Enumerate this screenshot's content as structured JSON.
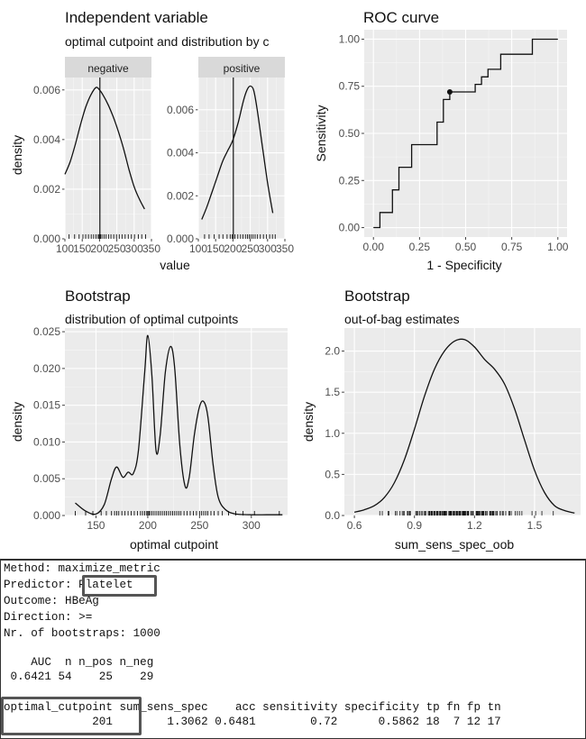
{
  "plots": {
    "independent": {
      "title": "Independent variable",
      "subtitle": "optimal cutpoint and distribution by c",
      "ylabel": "density",
      "xlabel": "value",
      "panels": [
        {
          "label": "negative"
        },
        {
          "label": "positive"
        }
      ]
    },
    "roc": {
      "title": "ROC curve",
      "xlabel": "1 - Specificity",
      "ylabel": "Sensitivity"
    },
    "boot_cut": {
      "title": "Bootstrap",
      "subtitle": "distribution of optimal cutpoints",
      "xlabel": "optimal cutpoint",
      "ylabel": "density"
    },
    "boot_oob": {
      "title": "Bootstrap",
      "subtitle": "out-of-bag estimates",
      "xlabel": "sum_sens_spec_oob",
      "ylabel": "density"
    }
  },
  "chart_data": [
    {
      "type": "line",
      "panel": "negative",
      "title": "Independent variable",
      "xlabel": "value",
      "ylabel": "density",
      "xlim": [
        100,
        350
      ],
      "ylim": [
        0,
        0.0065
      ],
      "xticks": [
        100,
        150,
        200,
        250,
        300,
        350
      ],
      "xtick_labels": [
        "100",
        "150",
        "200",
        "250",
        "300",
        "350"
      ],
      "yticks": [
        0,
        0.002,
        0.004,
        0.006
      ],
      "ytick_labels": [
        "0.000",
        "0.002",
        "0.004",
        "0.006"
      ],
      "cutpoint": 201,
      "x": [
        100,
        115,
        130,
        145,
        160,
        175,
        190,
        200,
        210,
        225,
        240,
        255,
        270,
        285,
        300,
        315,
        330
      ],
      "y": [
        0.0026,
        0.0031,
        0.0038,
        0.0046,
        0.0053,
        0.0058,
        0.0061,
        0.006,
        0.0058,
        0.0054,
        0.0049,
        0.0043,
        0.0036,
        0.0028,
        0.0021,
        0.0016,
        0.0012
      ],
      "rug": [
        112,
        128,
        141,
        152,
        160,
        168,
        176,
        183,
        190,
        196,
        199,
        203,
        207,
        213,
        219,
        226,
        233,
        241,
        249,
        257,
        265,
        274,
        283,
        292,
        301,
        312,
        322,
        333
      ]
    },
    {
      "type": "line",
      "panel": "positive",
      "xlim": [
        100,
        350
      ],
      "ylim": [
        0,
        0.0075
      ],
      "xticks": [
        100,
        150,
        200,
        250,
        300,
        350
      ],
      "xtick_labels": [
        "100",
        "150",
        "200",
        "250",
        "300",
        "350"
      ],
      "yticks": [
        0,
        0.002,
        0.004,
        0.006
      ],
      "ytick_labels": [
        "0.000",
        "0.002",
        "0.004",
        "0.006"
      ],
      "cutpoint": 201,
      "x": [
        110,
        125,
        140,
        155,
        170,
        185,
        200,
        215,
        230,
        240,
        250,
        260,
        270,
        285,
        300,
        315
      ],
      "y": [
        0.0009,
        0.0015,
        0.0022,
        0.0029,
        0.0036,
        0.0041,
        0.0046,
        0.0054,
        0.0064,
        0.0069,
        0.0071,
        0.0069,
        0.006,
        0.0043,
        0.0026,
        0.0012
      ],
      "rug": [
        118,
        131,
        146,
        160,
        171,
        183,
        192,
        198,
        206,
        214,
        222,
        229,
        236,
        242,
        247,
        252,
        258,
        264,
        271,
        279,
        288,
        297,
        306,
        314,
        322
      ]
    },
    {
      "type": "step",
      "title": "ROC curve",
      "xlabel": "1 - Specificity",
      "ylabel": "Sensitivity",
      "xlim": [
        0,
        1
      ],
      "ylim": [
        0,
        1
      ],
      "xticks": [
        0,
        0.25,
        0.5,
        0.75,
        1
      ],
      "xtick_labels": [
        "0.00",
        "0.25",
        "0.50",
        "0.75",
        "1.00"
      ],
      "yticks": [
        0,
        0.25,
        0.5,
        0.75,
        1
      ],
      "ytick_labels": [
        "0.00",
        "0.25",
        "0.50",
        "0.75",
        "1.00"
      ],
      "points": [
        [
          0,
          0
        ],
        [
          0.035,
          0
        ],
        [
          0.035,
          0.08
        ],
        [
          0.103,
          0.08
        ],
        [
          0.103,
          0.2
        ],
        [
          0.138,
          0.2
        ],
        [
          0.138,
          0.32
        ],
        [
          0.207,
          0.32
        ],
        [
          0.207,
          0.44
        ],
        [
          0.345,
          0.44
        ],
        [
          0.345,
          0.56
        ],
        [
          0.379,
          0.56
        ],
        [
          0.379,
          0.68
        ],
        [
          0.414,
          0.68
        ],
        [
          0.414,
          0.72
        ],
        [
          0.552,
          0.72
        ],
        [
          0.552,
          0.76
        ],
        [
          0.586,
          0.76
        ],
        [
          0.586,
          0.8
        ],
        [
          0.621,
          0.8
        ],
        [
          0.621,
          0.84
        ],
        [
          0.69,
          0.84
        ],
        [
          0.69,
          0.92
        ],
        [
          0.862,
          0.92
        ],
        [
          0.862,
          1.0
        ],
        [
          1.0,
          1.0
        ]
      ],
      "optimal": {
        "x": 0.414,
        "y": 0.72
      }
    },
    {
      "type": "line",
      "title": "Bootstrap",
      "subtitle": "distribution of optimal cutpoints",
      "xlabel": "optimal cutpoint",
      "ylabel": "density",
      "xlim": [
        120,
        335
      ],
      "ylim": [
        0,
        0.0255
      ],
      "xticks": [
        150,
        200,
        250,
        300
      ],
      "xtick_labels": [
        "150",
        "200",
        "250",
        "300"
      ],
      "yticks": [
        0,
        0.005,
        0.01,
        0.015,
        0.02,
        0.025
      ],
      "ytick_labels": [
        "0.000",
        "0.005",
        "0.010",
        "0.015",
        "0.020",
        "0.025"
      ],
      "x": [
        130,
        140,
        150,
        158,
        165,
        170,
        176,
        181,
        186,
        191,
        197,
        200,
        204,
        208,
        212,
        217,
        222,
        226,
        231,
        236,
        240,
        245,
        250,
        254,
        258,
        263,
        268,
        275,
        285,
        300,
        315,
        330
      ],
      "y": [
        0.0017,
        0.0006,
        0.0002,
        0.0015,
        0.005,
        0.0066,
        0.0052,
        0.0059,
        0.0057,
        0.0089,
        0.0195,
        0.0245,
        0.019,
        0.0088,
        0.011,
        0.0195,
        0.023,
        0.02,
        0.0095,
        0.004,
        0.0052,
        0.011,
        0.0148,
        0.0155,
        0.0135,
        0.007,
        0.0025,
        0.0008,
        0.0002,
        0.0001,
        0.0001,
        0.0001
      ],
      "rug": [
        130,
        140,
        147,
        155,
        160,
        165,
        168,
        170,
        172,
        175,
        178,
        181,
        184,
        187,
        190,
        193,
        195,
        197,
        199,
        200,
        201,
        202,
        204,
        206,
        208,
        210,
        212,
        214,
        216,
        218,
        220,
        222,
        224,
        226,
        228,
        230,
        232,
        235,
        238,
        241,
        244,
        247,
        250,
        252,
        254,
        256,
        258,
        261,
        264,
        268,
        272,
        278,
        285,
        292,
        303,
        327
      ]
    },
    {
      "type": "line",
      "title": "Bootstrap",
      "subtitle": "out-of-bag estimates",
      "xlabel": "sum_sens_spec_oob",
      "ylabel": "density",
      "xlim": [
        0.55,
        1.73
      ],
      "ylim": [
        0,
        2.28
      ],
      "xticks": [
        0.6,
        0.9,
        1.2,
        1.5
      ],
      "xtick_labels": [
        "0.6",
        "0.9",
        "1.2",
        "1.5"
      ],
      "yticks": [
        0,
        0.5,
        1.0,
        1.5,
        2.0
      ],
      "ytick_labels": [
        "0.0",
        "0.5",
        "1.0",
        "1.5",
        "2.0"
      ],
      "x": [
        0.6,
        0.65,
        0.7,
        0.75,
        0.8,
        0.85,
        0.9,
        0.95,
        1.0,
        1.05,
        1.1,
        1.15,
        1.2,
        1.25,
        1.3,
        1.35,
        1.4,
        1.45,
        1.5,
        1.55,
        1.6,
        1.65,
        1.7
      ],
      "y": [
        0.04,
        0.07,
        0.12,
        0.22,
        0.4,
        0.68,
        1.05,
        1.45,
        1.78,
        2.0,
        2.12,
        2.14,
        2.05,
        1.9,
        1.78,
        1.6,
        1.3,
        0.92,
        0.55,
        0.28,
        0.12,
        0.06,
        0.03
      ],
      "rug_range": [
        0.62,
        1.68
      ]
    }
  ],
  "console": {
    "method": "Method: maximize_metric",
    "predictor_prefix": "Predictor: ",
    "predictor_value": "Platelet",
    "outcome": "Outcome: HBeAg",
    "direction": "Direction: >=",
    "nboot": "Nr. of bootstraps: 1000",
    "auc_header": "    AUC  n n_pos n_neg",
    "auc_values": " 0.6421 54    25    29",
    "opt_header_boxed": "optimal_cutpoint",
    "opt_header_rest": " sum_sens_spec    acc sensitivity specificity tp fn fp tn",
    "opt_value_boxed": "             201",
    "opt_value_rest": "        1.3062 0.6481        0.72      0.5862 18  7 12 17"
  }
}
